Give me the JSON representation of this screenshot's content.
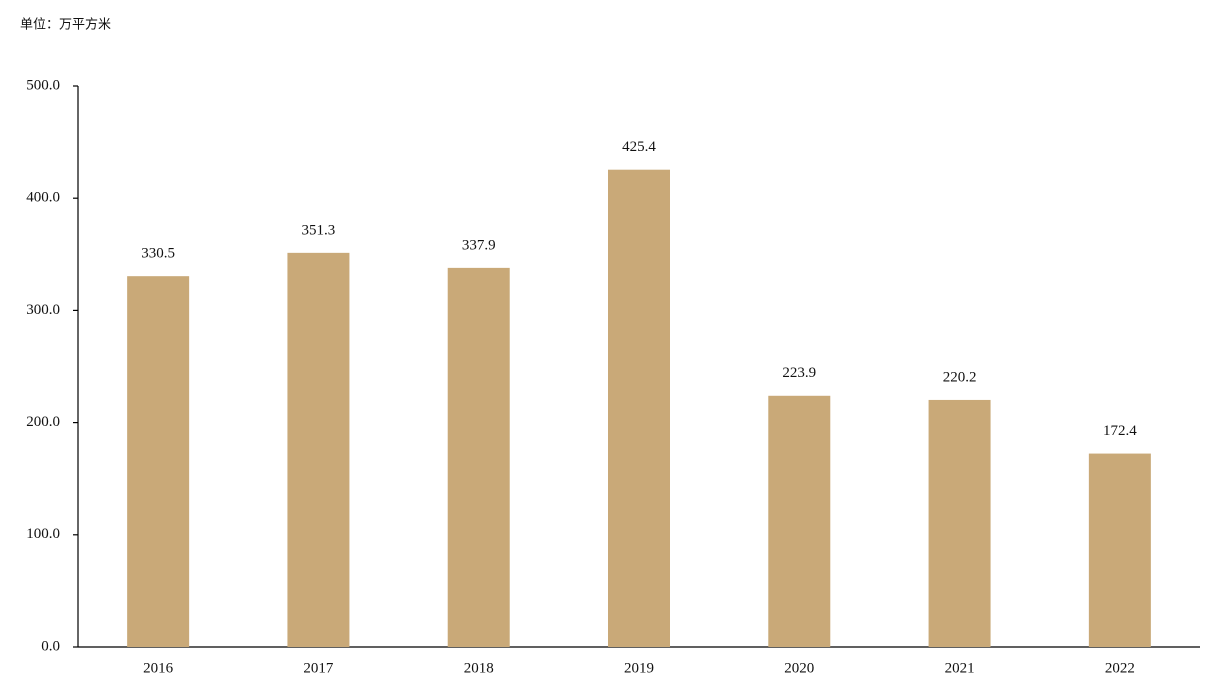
{
  "chart_data": {
    "type": "bar",
    "title": "单位：万平方米",
    "categories": [
      "2016",
      "2017",
      "2018",
      "2019",
      "2020",
      "2021",
      "2022"
    ],
    "values": [
      330.5,
      351.3,
      337.9,
      425.4,
      223.9,
      220.2,
      172.4
    ],
    "color": "#c9a978",
    "ylim": [
      0,
      500
    ],
    "yticks": [
      {
        "value": 0,
        "label": "0.0"
      },
      {
        "value": 100,
        "label": "100.0"
      },
      {
        "value": 200,
        "label": "200.0"
      },
      {
        "value": 300,
        "label": "300.0"
      },
      {
        "value": 400,
        "label": "400.0"
      },
      {
        "value": 500,
        "label": "500.0"
      }
    ],
    "grid": false
  }
}
